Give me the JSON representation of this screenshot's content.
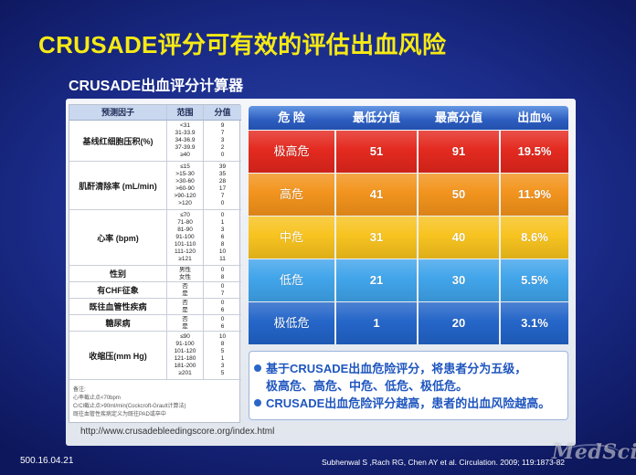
{
  "title": "CRUSADE评分可有效的评估出血风险",
  "subtitle": "CRUSADE出血评分计算器",
  "left_table": {
    "headers": {
      "factor": "预测因子",
      "range": "范围",
      "score": "分值"
    },
    "rows": [
      {
        "factor": "基线红细胞压积(%)",
        "ranges": [
          "<31",
          "31-33.9",
          "34-36.9",
          "37-39.9",
          "≥40"
        ],
        "scores": [
          "9",
          "7",
          "3",
          "2",
          "0"
        ]
      },
      {
        "factor": "肌酐清除率 (mL/min)",
        "ranges": [
          "≤15",
          ">15-30",
          ">30-60",
          ">60-90",
          ">90-120",
          ">120"
        ],
        "scores": [
          "39",
          "35",
          "28",
          "17",
          "7",
          "0"
        ]
      },
      {
        "factor": "心率 (bpm)",
        "ranges": [
          "≤70",
          "71-80",
          "81-90",
          "91-100",
          "101-110",
          "111-120",
          "≥121"
        ],
        "scores": [
          "0",
          "1",
          "3",
          "6",
          "8",
          "10",
          "11"
        ]
      },
      {
        "factor": "性别",
        "ranges": [
          "男性",
          "女性"
        ],
        "scores": [
          "0",
          "8"
        ]
      },
      {
        "factor": "有CHF征象",
        "ranges": [
          "否",
          "是"
        ],
        "scores": [
          "0",
          "7"
        ]
      },
      {
        "factor": "既往血管性疾病",
        "ranges": [
          "否",
          "是"
        ],
        "scores": [
          "0",
          "6"
        ]
      },
      {
        "factor": "糖尿病",
        "ranges": [
          "否",
          "是"
        ],
        "scores": [
          "0",
          "6"
        ]
      },
      {
        "factor": "收缩压(mm Hg)",
        "ranges": [
          "≤90",
          "91-100",
          "101-120",
          "121-180",
          "181-200",
          "≥201"
        ],
        "scores": [
          "10",
          "8",
          "5",
          "1",
          "3",
          "5"
        ]
      }
    ],
    "notes": [
      "备注:",
      "心率截止点<70bpm",
      "CrCl截止点>90ml/min(Cockcroft-Grault计算法)",
      "既往血管性疾病定义为既往PAD或卒中"
    ]
  },
  "risk_table": {
    "headers": [
      "危 险",
      "最低分值",
      "最高分值",
      "出血%"
    ],
    "rows": [
      {
        "level": "极高危",
        "min": "51",
        "max": "91",
        "bleeding": "19.5%",
        "color": "#e3261c"
      },
      {
        "level": "高危",
        "min": "41",
        "max": "50",
        "bleeding": "11.9%",
        "color": "#f2921a"
      },
      {
        "level": "中危",
        "min": "31",
        "max": "40",
        "bleeding": "8.6%",
        "color": "#f7c21c"
      },
      {
        "level": "低危",
        "min": "21",
        "max": "30",
        "bleeding": "5.5%",
        "color": "#3ea3ea"
      },
      {
        "level": "极低危",
        "min": "1",
        "max": "20",
        "bleeding": "3.1%",
        "color": "#2163c8"
      }
    ]
  },
  "summary": {
    "bullets": [
      {
        "lines": [
          "基于CRUSADE出血危险评分，将患者分为五级，",
          "极高危、高危、中危、低危、极低危。"
        ]
      },
      {
        "lines": [
          "CRUSADE出血危险评分越高，患者的出血风险越高。"
        ]
      }
    ]
  },
  "url": "http://www.crusadebleedingscore.org/index.html",
  "footer": {
    "slide_id": "500.16.04.21",
    "reference": "Subhenwal S ,Rach RG, Chen AY et al. Circulation. 2009; 119:1873-82"
  },
  "watermark": "MedSci"
}
